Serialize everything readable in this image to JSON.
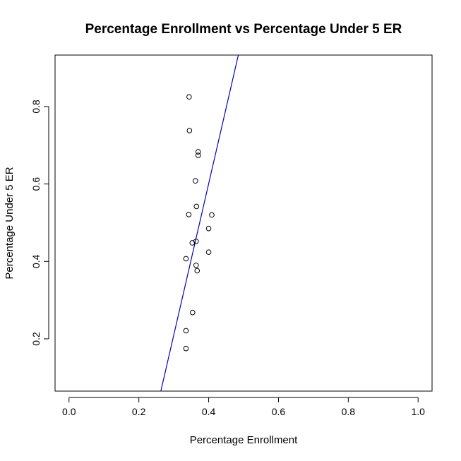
{
  "chart_data": {
    "type": "scatter",
    "title": "Percentage Enrollment vs Percentage Under 5 ER",
    "xlabel": "Percentage Enrollment",
    "ylabel": "Percentage Under 5 ER",
    "xlim": [
      -0.04,
      1.04
    ],
    "ylim": [
      0.065,
      0.933
    ],
    "xticks": [
      0.0,
      0.2,
      0.4,
      0.6,
      0.8,
      1.0
    ],
    "xtick_labels": [
      "0.0",
      "0.2",
      "0.4",
      "0.6",
      "0.8",
      "1.0"
    ],
    "yticks": [
      0.2,
      0.4,
      0.6,
      0.8
    ],
    "ytick_labels": [
      "0.2",
      "0.4",
      "0.6",
      "0.8"
    ],
    "grid": false,
    "legend": "none",
    "colors": {
      "points": "#000000",
      "line": "#0000cc",
      "frame": "#000000"
    },
    "series": [
      {
        "x": [
          0.344,
          0.345,
          0.37,
          0.37,
          0.362,
          0.365,
          0.343,
          0.409,
          0.4,
          0.364,
          0.353,
          0.4,
          0.335,
          0.364,
          0.367,
          0.354,
          0.335,
          0.335
        ],
        "y": [
          0.825,
          0.738,
          0.683,
          0.674,
          0.608,
          0.542,
          0.521,
          0.52,
          0.485,
          0.452,
          0.448,
          0.424,
          0.407,
          0.39,
          0.376,
          0.268,
          0.221,
          0.175
        ]
      }
    ],
    "fit_line": {
      "x": [
        0.263,
        0.485
      ],
      "y": [
        0.065,
        0.933
      ]
    }
  }
}
